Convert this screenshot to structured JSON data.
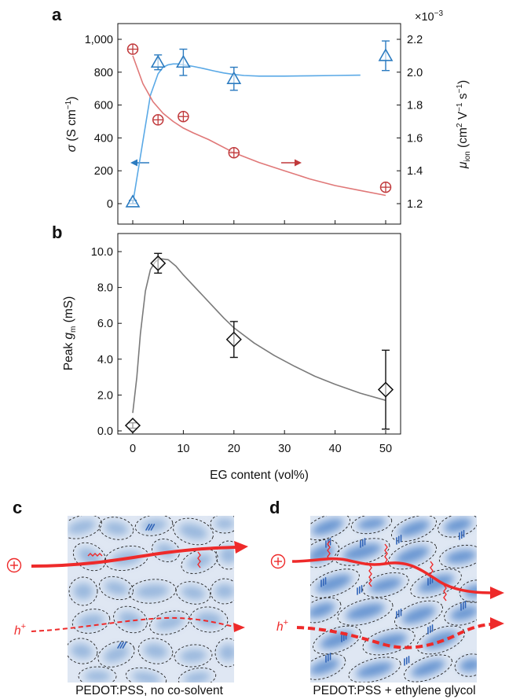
{
  "colors": {
    "sigma": "#2b7bc0",
    "sigma_fit": "#5aa9e6",
    "mobility": "#c0393b",
    "mobility_fit": "#e07878",
    "gm": "#111111",
    "gm_fit": "#7a7a7a",
    "background_blue": "#8fb1da",
    "domain_light": "#dfe7f3",
    "ion_path": "#ee2a2a"
  },
  "chart_data": [
    {
      "panel": "a",
      "type": "scatter",
      "x_ticks": [
        "0",
        "10",
        "20",
        "30",
        "40",
        "50"
      ],
      "xlim": [
        0,
        50
      ],
      "left_axis": {
        "ylabel_symbol": "σ",
        "ylabel_unit_open": " (S cm",
        "ylabel_unit_sup": "−1",
        "ylabel_unit_close": ")",
        "ylim": [
          0,
          1000
        ],
        "tick_labels": [
          "0",
          "200",
          "400",
          "600",
          "800",
          "1,000"
        ]
      },
      "right_axis": {
        "ylabel_symbol": "μ",
        "ylabel_sub": "ion",
        "ylabel_unit_a": " (cm",
        "ylabel_unit_a_sup": "2",
        "ylabel_unit_b": " V",
        "ylabel_unit_b_sup": "−1",
        "ylabel_unit_c": " s",
        "ylabel_unit_c_sup": "−1",
        "ylabel_unit_close": ")",
        "ylim": [
          1.2,
          2.2
        ],
        "tick_labels": [
          "1.2",
          "1.4",
          "1.6",
          "1.8",
          "2.0",
          "2.2"
        ],
        "multiplier_base": "×10",
        "multiplier_exp": "−3"
      },
      "series": [
        {
          "marker": "triangle",
          "axis": "left",
          "x": [
            0,
            5,
            10,
            20,
            50
          ],
          "y": [
            10,
            860,
            860,
            760,
            900
          ],
          "err": [
            10,
            45,
            80,
            70,
            90
          ],
          "fit_x": [
            0,
            2,
            3.5,
            5,
            6,
            7,
            8,
            9,
            10,
            12,
            14,
            16,
            18,
            20,
            22,
            25,
            30,
            35,
            40,
            45
          ],
          "fit_y": [
            0,
            380,
            660,
            790,
            830,
            845,
            850,
            850,
            845,
            835,
            822,
            808,
            795,
            786,
            780,
            776,
            776,
            778,
            780,
            782
          ]
        },
        {
          "marker": "circle",
          "axis": "right",
          "x": [
            0,
            5,
            10,
            20,
            50
          ],
          "y": [
            2.14,
            1.71,
            1.73,
            1.51,
            1.3
          ],
          "err": [
            0.01,
            0.01,
            0.01,
            0.01,
            0.01
          ],
          "fit_x": [
            0,
            2,
            4,
            6,
            8,
            10,
            12,
            15,
            20,
            25,
            30,
            35,
            40,
            45,
            50
          ],
          "fit_y": [
            2.1,
            1.93,
            1.82,
            1.75,
            1.7,
            1.66,
            1.63,
            1.59,
            1.51,
            1.45,
            1.4,
            1.35,
            1.31,
            1.28,
            1.25
          ]
        }
      ]
    },
    {
      "panel": "b",
      "type": "scatter",
      "xlabel": "EG content (vol%)",
      "x_ticks": [
        "0",
        "10",
        "20",
        "30",
        "40",
        "50"
      ],
      "xlim": [
        0,
        50
      ],
      "ylabel_prefix": "Peak ",
      "ylabel_symbol": "g",
      "ylabel_sub": "m",
      "ylabel_unit": " (mS)",
      "ylim": [
        0,
        10
      ],
      "y_tick_labels": [
        "0.0",
        "2.0",
        "4.0",
        "6.0",
        "8.0",
        "10.0"
      ],
      "series": [
        {
          "marker": "diamond",
          "x": [
            0,
            5,
            20,
            50
          ],
          "y": [
            0.3,
            9.35,
            5.1,
            2.3
          ],
          "err": [
            0.15,
            0.55,
            1.0,
            2.2
          ],
          "fit_x": [
            0,
            0.8,
            1.5,
            2.5,
            3.5,
            4.5,
            5.5,
            7,
            8.5,
            10,
            12,
            14,
            16,
            18,
            20,
            24,
            28,
            32,
            36,
            40,
            45,
            50
          ],
          "fit_y": [
            1.0,
            3.0,
            5.4,
            7.8,
            9.0,
            9.45,
            9.6,
            9.55,
            9.2,
            8.7,
            8.1,
            7.5,
            6.9,
            6.3,
            5.75,
            4.9,
            4.2,
            3.6,
            3.05,
            2.6,
            2.1,
            1.7
          ]
        }
      ]
    }
  ],
  "panel_c": {
    "letter": "c",
    "caption": "PEDOT:PSS, no co-solvent",
    "hole_base": "h",
    "hole_sup": "+"
  },
  "panel_d": {
    "letter": "d",
    "caption": "PEDOT:PSS + ethylene glycol",
    "hole_base": "h",
    "hole_sup": "+"
  }
}
